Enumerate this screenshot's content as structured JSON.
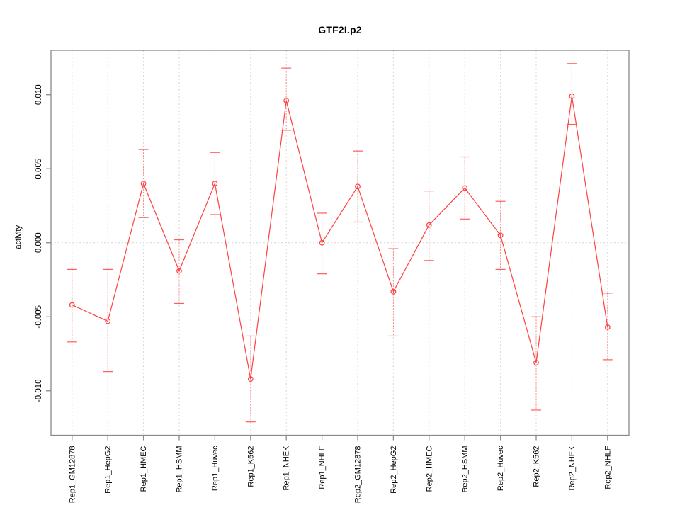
{
  "colors": {
    "series": "#ff4040",
    "error_bar": "#ff8585",
    "error_cap": "#ff5c5c",
    "grid": "#d6d6d6",
    "axis": "#8a8a8a",
    "text": "#000000",
    "background": "#ffffff"
  },
  "chart_data": {
    "type": "line",
    "title": "GTF2I.p2",
    "xlabel": "",
    "ylabel": "activity",
    "ylim": [
      -0.013,
      0.013
    ],
    "yticks": [
      -0.01,
      -0.005,
      0.0,
      0.005,
      0.01
    ],
    "ytick_labels": [
      "-0.010",
      "-0.005",
      "0.000",
      "0.005",
      "0.010"
    ],
    "grid": "vertical dotted gridline at every category; dotted horizontal line at y=0",
    "legend_position": "none",
    "marker": "open-circle",
    "error_bars": true,
    "categories": [
      "Rep1_GM12878",
      "Rep1_HepG2",
      "Rep1_HMEC",
      "Rep1_HSMM",
      "Rep1_Huvec",
      "Rep1_K562",
      "Rep1_NHEK",
      "Rep1_NHLF",
      "Rep2_GM12878",
      "Rep2_HepG2",
      "Rep2_HMEC",
      "Rep2_HSMM",
      "Rep2_Huvec",
      "Rep2_K562",
      "Rep2_NHEK",
      "Rep2_NHLF"
    ],
    "series": [
      {
        "name": "activity",
        "values": [
          -0.0042,
          -0.0053,
          0.004,
          -0.0019,
          0.004,
          -0.0092,
          0.0096,
          0.0,
          0.0038,
          -0.0033,
          0.0012,
          0.0037,
          0.0005,
          -0.0081,
          0.0099,
          -0.0057
        ],
        "upper": [
          -0.0018,
          -0.0018,
          0.0063,
          0.0002,
          0.0061,
          -0.0063,
          0.0118,
          0.002,
          0.0062,
          -0.0004,
          0.0035,
          0.0058,
          0.0028,
          -0.005,
          0.0121,
          -0.0034
        ],
        "lower": [
          -0.0067,
          -0.0087,
          0.0017,
          -0.0041,
          0.0019,
          -0.0121,
          0.0076,
          -0.0021,
          0.0014,
          -0.0063,
          -0.0012,
          0.0016,
          -0.0018,
          -0.0113,
          0.008,
          -0.0079
        ]
      }
    ]
  }
}
